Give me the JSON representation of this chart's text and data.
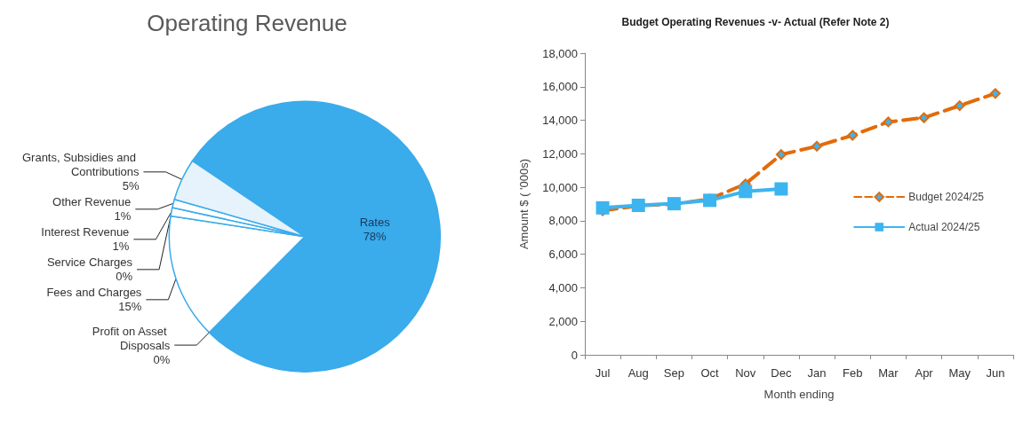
{
  "chart_data": [
    {
      "type": "pie",
      "title": "Operating Revenue",
      "categories": [
        "Rates",
        "Profit on Asset Disposals",
        "Fees and Charges",
        "Service Charges",
        "Interest Revenue",
        "Other Revenue",
        "Grants, Subsidies and Contributions"
      ],
      "values": [
        78,
        0,
        15,
        0,
        1,
        1,
        5
      ],
      "value_labels": [
        "78%",
        "0%",
        "15%",
        "0%",
        "1%",
        "1%",
        "5%"
      ],
      "colors": [
        "#3aabeb",
        "#3aabeb",
        "#ffffff",
        "#ffffff",
        "#ffffff",
        "#ffffff",
        "#e6f3fc"
      ]
    },
    {
      "type": "line",
      "title": "Budget Operating Revenues -v- Actual (Refer Note 2)",
      "xlabel": "Month ending",
      "ylabel": "Amount $ ( '000s)",
      "categories": [
        "Jul",
        "Aug",
        "Sep",
        "Oct",
        "Nov",
        "Dec",
        "Jan",
        "Feb",
        "Mar",
        "Apr",
        "May",
        "Jun"
      ],
      "ylim": [
        0,
        18000
      ],
      "yticks": [
        0,
        {
          "value": 2000,
          "label": "2,000"
        },
        {
          "value": 4000,
          "label": "4,000"
        },
        {
          "value": 6000,
          "label": "6,000"
        },
        {
          "value": 8000,
          "label": "8,000"
        },
        {
          "value": 10000,
          "label": "10,000"
        },
        {
          "value": 12000,
          "label": "12,000"
        },
        {
          "value": 14000,
          "label": "14,000"
        },
        {
          "value": 16000,
          "label": "16,000"
        },
        {
          "value": 18000,
          "label": "18,000"
        }
      ],
      "grid": false,
      "legend": "right",
      "series": [
        {
          "name": "Budget 2024/25",
          "color": "#e26b0a",
          "line_style": "dashed",
          "marker": "diamond",
          "values": [
            8600,
            8900,
            9000,
            9300,
            10200,
            11950,
            12450,
            13100,
            13900,
            14150,
            14870,
            15600
          ]
        },
        {
          "name": "Actual 2024/25",
          "color": "#3cb4f0",
          "line_style": "solid",
          "marker": "square",
          "values": [
            8770,
            8920,
            9020,
            9220,
            9750,
            9900,
            null,
            null,
            null,
            null,
            null,
            null
          ]
        }
      ]
    }
  ]
}
